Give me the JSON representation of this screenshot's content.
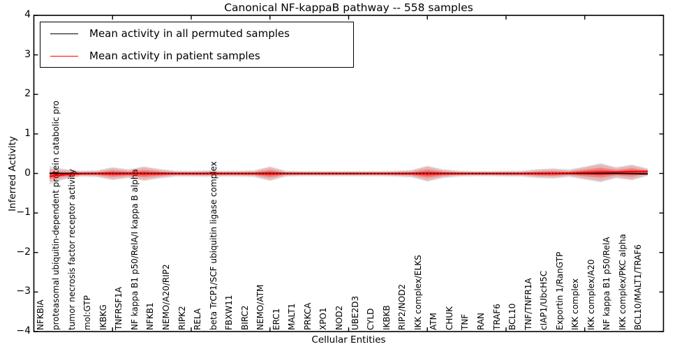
{
  "title": "Canonical NF-kappaB pathway -- 558 samples",
  "axes": {
    "xlabel": "Cellular Entities",
    "ylabel": "Inferred Activity"
  },
  "legend": {
    "entries": [
      {
        "label": "Mean activity in all permuted samples",
        "color": "#000000"
      },
      {
        "label": "Mean activity in patient samples",
        "color": "#ff0000"
      }
    ]
  },
  "chart_data": {
    "type": "area",
    "title": "Canonical NF-kappaB pathway -- 558 samples",
    "xlabel": "Cellular Entities",
    "ylabel": "Inferred Activity",
    "ylim": [
      -4,
      4
    ],
    "xlim": [
      0,
      40
    ],
    "grid": false,
    "legend_position": "upper left",
    "y_ticks": [
      4,
      3,
      2,
      1,
      0,
      -1,
      -2,
      -3,
      -4
    ],
    "y_tick_labels": [
      "4",
      "3",
      "2",
      "1",
      "0",
      "−1",
      "−2",
      "−3",
      "−4"
    ],
    "x_major_ticks": [
      5,
      10,
      15,
      20,
      25,
      30,
      35
    ],
    "categories": [
      "NFKBIA",
      "proteasomal ubiquitin-dependent protein catabolic pro",
      "tumor necrosis factor receptor activity",
      "mol:GTP",
      "IKBKG",
      "TNFRSF1A",
      "NF kappa B1 p50/RelA/I kappa B alpha",
      "NFKB1",
      "NEMO/A20/RIP2",
      "RIPK2",
      "RELA",
      "beta TrCP1/SCF ubiquitin ligase complex",
      "FBXW11",
      "BIRC2",
      "NEMO/ATM",
      "ERC1",
      "MALT1",
      "PRKCA",
      "XPO1",
      "NOD2",
      "UBE2D3",
      "CYLD",
      "IKBKB",
      "RIP2/NOD2",
      "IKK complex/ELKS",
      "ATM",
      "CHUK",
      "TNF",
      "RAN",
      "TRAF6",
      "BCL10",
      "TNF/TNFR1A",
      "cIAP1/UbcH5C",
      "Exportin 1/RanGTP",
      "IKK complex",
      "IKK complex/A20",
      "NF kappa B1 p50/RelA",
      "IKK complex/PKC alpha",
      "BCL10/MALT1/TRAF6"
    ],
    "series": [
      {
        "name": "Mean activity in all permuted samples",
        "color": "#000000",
        "values": [
          0.005,
          0,
          0,
          0,
          0,
          0,
          0,
          0,
          0,
          0,
          0,
          0,
          0,
          0,
          0,
          0,
          0,
          0,
          0,
          0,
          0,
          0,
          0,
          0,
          0,
          0,
          0,
          0,
          0,
          0,
          0,
          0,
          0,
          0,
          0,
          0,
          0,
          -0.005,
          -0.015
        ]
      },
      {
        "name": "Mean activity in patient samples",
        "color": "#ff0000",
        "values": [
          -0.075,
          -0.03,
          -0.01,
          -0.008,
          -0.008,
          -0.008,
          -0.008,
          -0.008,
          -0.008,
          -0.008,
          -0.008,
          -0.008,
          -0.008,
          -0.008,
          -0.008,
          -0.008,
          -0.008,
          -0.008,
          -0.008,
          -0.008,
          -0.008,
          -0.008,
          -0.008,
          -0.008,
          -0.008,
          -0.008,
          -0.008,
          -0.008,
          -0.008,
          -0.008,
          -0.008,
          -0.005,
          0.0,
          0.01,
          0.02,
          0.03,
          0.035,
          0.045,
          0.055
        ]
      }
    ],
    "bands": [
      {
        "name": "permuted-sample-range",
        "color": "#000000",
        "opacity": 0.12,
        "half_widths": [
          0.23,
          0.131,
          0.078,
          0.087,
          0.166,
          0.113,
          0.184,
          0.122,
          0.078,
          0.078,
          0.085,
          0.078,
          0.078,
          0.087,
          0.184,
          0.078,
          0.069,
          0.069,
          0.069,
          0.069,
          0.069,
          0.069,
          0.078,
          0.096,
          0.202,
          0.113,
          0.078,
          0.069,
          0.069,
          0.078,
          0.078,
          0.113,
          0.131,
          0.096,
          0.166,
          0.245,
          0.14,
          0.2,
          0.1
        ]
      },
      {
        "name": "patient-sample-range",
        "color": "#ff0000",
        "opacity": 0.18,
        "half_widths": [
          0.16,
          0.106,
          0.053,
          0.062,
          0.141,
          0.088,
          0.159,
          0.097,
          0.053,
          0.053,
          0.06,
          0.053,
          0.053,
          0.062,
          0.159,
          0.053,
          0.044,
          0.044,
          0.044,
          0.044,
          0.044,
          0.044,
          0.053,
          0.071,
          0.177,
          0.088,
          0.053,
          0.044,
          0.044,
          0.053,
          0.053,
          0.088,
          0.106,
          0.071,
          0.141,
          0.212,
          0.115,
          0.177,
          0.071
        ]
      }
    ],
    "zero_line": {
      "y": 0,
      "style": "dotted",
      "color": "#000000"
    }
  }
}
